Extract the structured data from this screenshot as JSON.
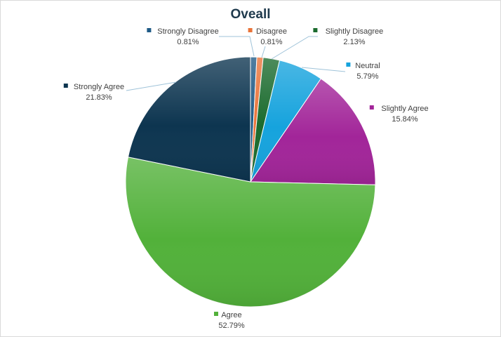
{
  "chart_data": {
    "type": "pie",
    "title": "Oveall",
    "start_angle_deg": 0,
    "direction": "clockwise",
    "slices": [
      {
        "name": "Strongly Disagree",
        "value": 0.81,
        "label": "0.81%",
        "color": "#1f5a86"
      },
      {
        "name": "Disagree",
        "value": 0.81,
        "label": "0.81%",
        "color": "#e9743a"
      },
      {
        "name": "Slightly Disagree",
        "value": 2.13,
        "label": "2.13%",
        "color": "#1b6b2e"
      },
      {
        "name": "Neutral",
        "value": 5.79,
        "label": "5.79%",
        "color": "#16a3dd"
      },
      {
        "name": "Slightly Agree",
        "value": 15.84,
        "label": "15.84%",
        "color": "#a22599"
      },
      {
        "name": "Agree",
        "value": 52.79,
        "label": "52.79%",
        "color": "#52b13a"
      },
      {
        "name": "Strongly Agree",
        "value": 21.83,
        "label": "21.83%",
        "color": "#0d3550"
      }
    ]
  }
}
